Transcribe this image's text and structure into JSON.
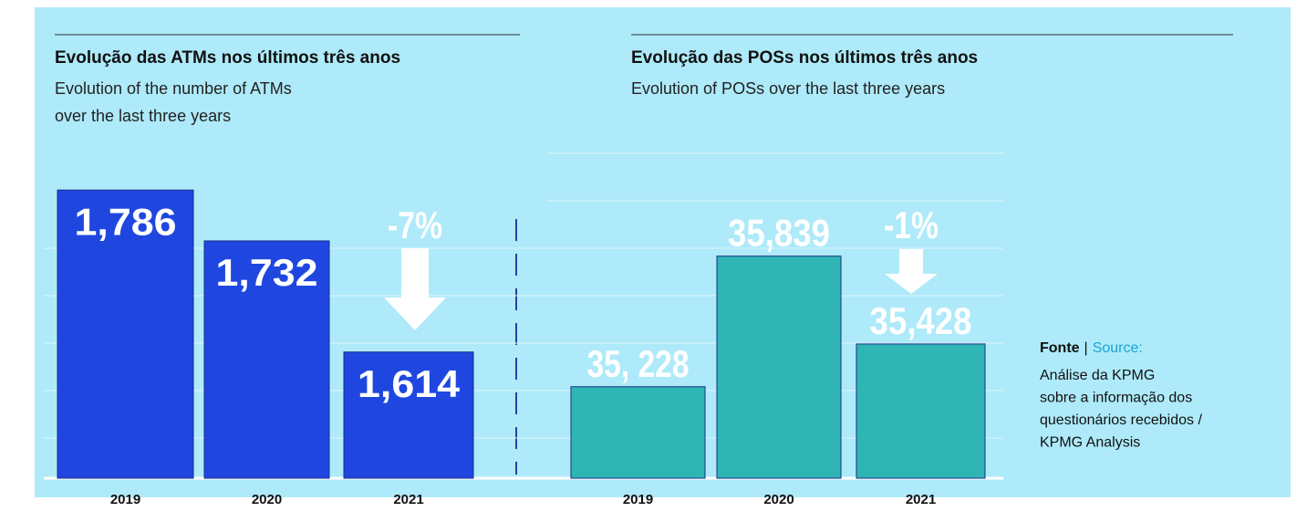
{
  "chart_data": [
    {
      "type": "bar",
      "title": "Evolução das ATMs nos últimos três anos",
      "subtitle": [
        "Evolution of the number of ATMs",
        "over the last three years"
      ],
      "categories": [
        "2019",
        "2020",
        "2021"
      ],
      "values": [
        1786,
        1732,
        1614
      ],
      "value_labels": [
        "1,786",
        "1,732",
        "1,614"
      ],
      "label_position": "inside",
      "color": "#1f47e0",
      "ylim": [
        1480,
        1825
      ],
      "annotation": "-7%"
    },
    {
      "type": "bar",
      "title": "Evolução das POSs nos últimos três anos",
      "subtitle": [
        "Evolution of POSs over the last three years"
      ],
      "categories": [
        "2019",
        "2020",
        "2021"
      ],
      "values": [
        35228,
        35839,
        35428
      ],
      "value_labels": [
        "35, 228",
        "35,839",
        "35,428"
      ],
      "label_position": "above",
      "color": "#2fb5b3",
      "ylim": [
        34800,
        36320
      ],
      "annotation": "-1%"
    }
  ],
  "source": {
    "label": "Fonte",
    "separator": "|",
    "label_en": "Source:",
    "lines": [
      "Análise da KPMG",
      "sobre a informação dos",
      "questionários recebidos /",
      "KPMG Analysis"
    ]
  }
}
